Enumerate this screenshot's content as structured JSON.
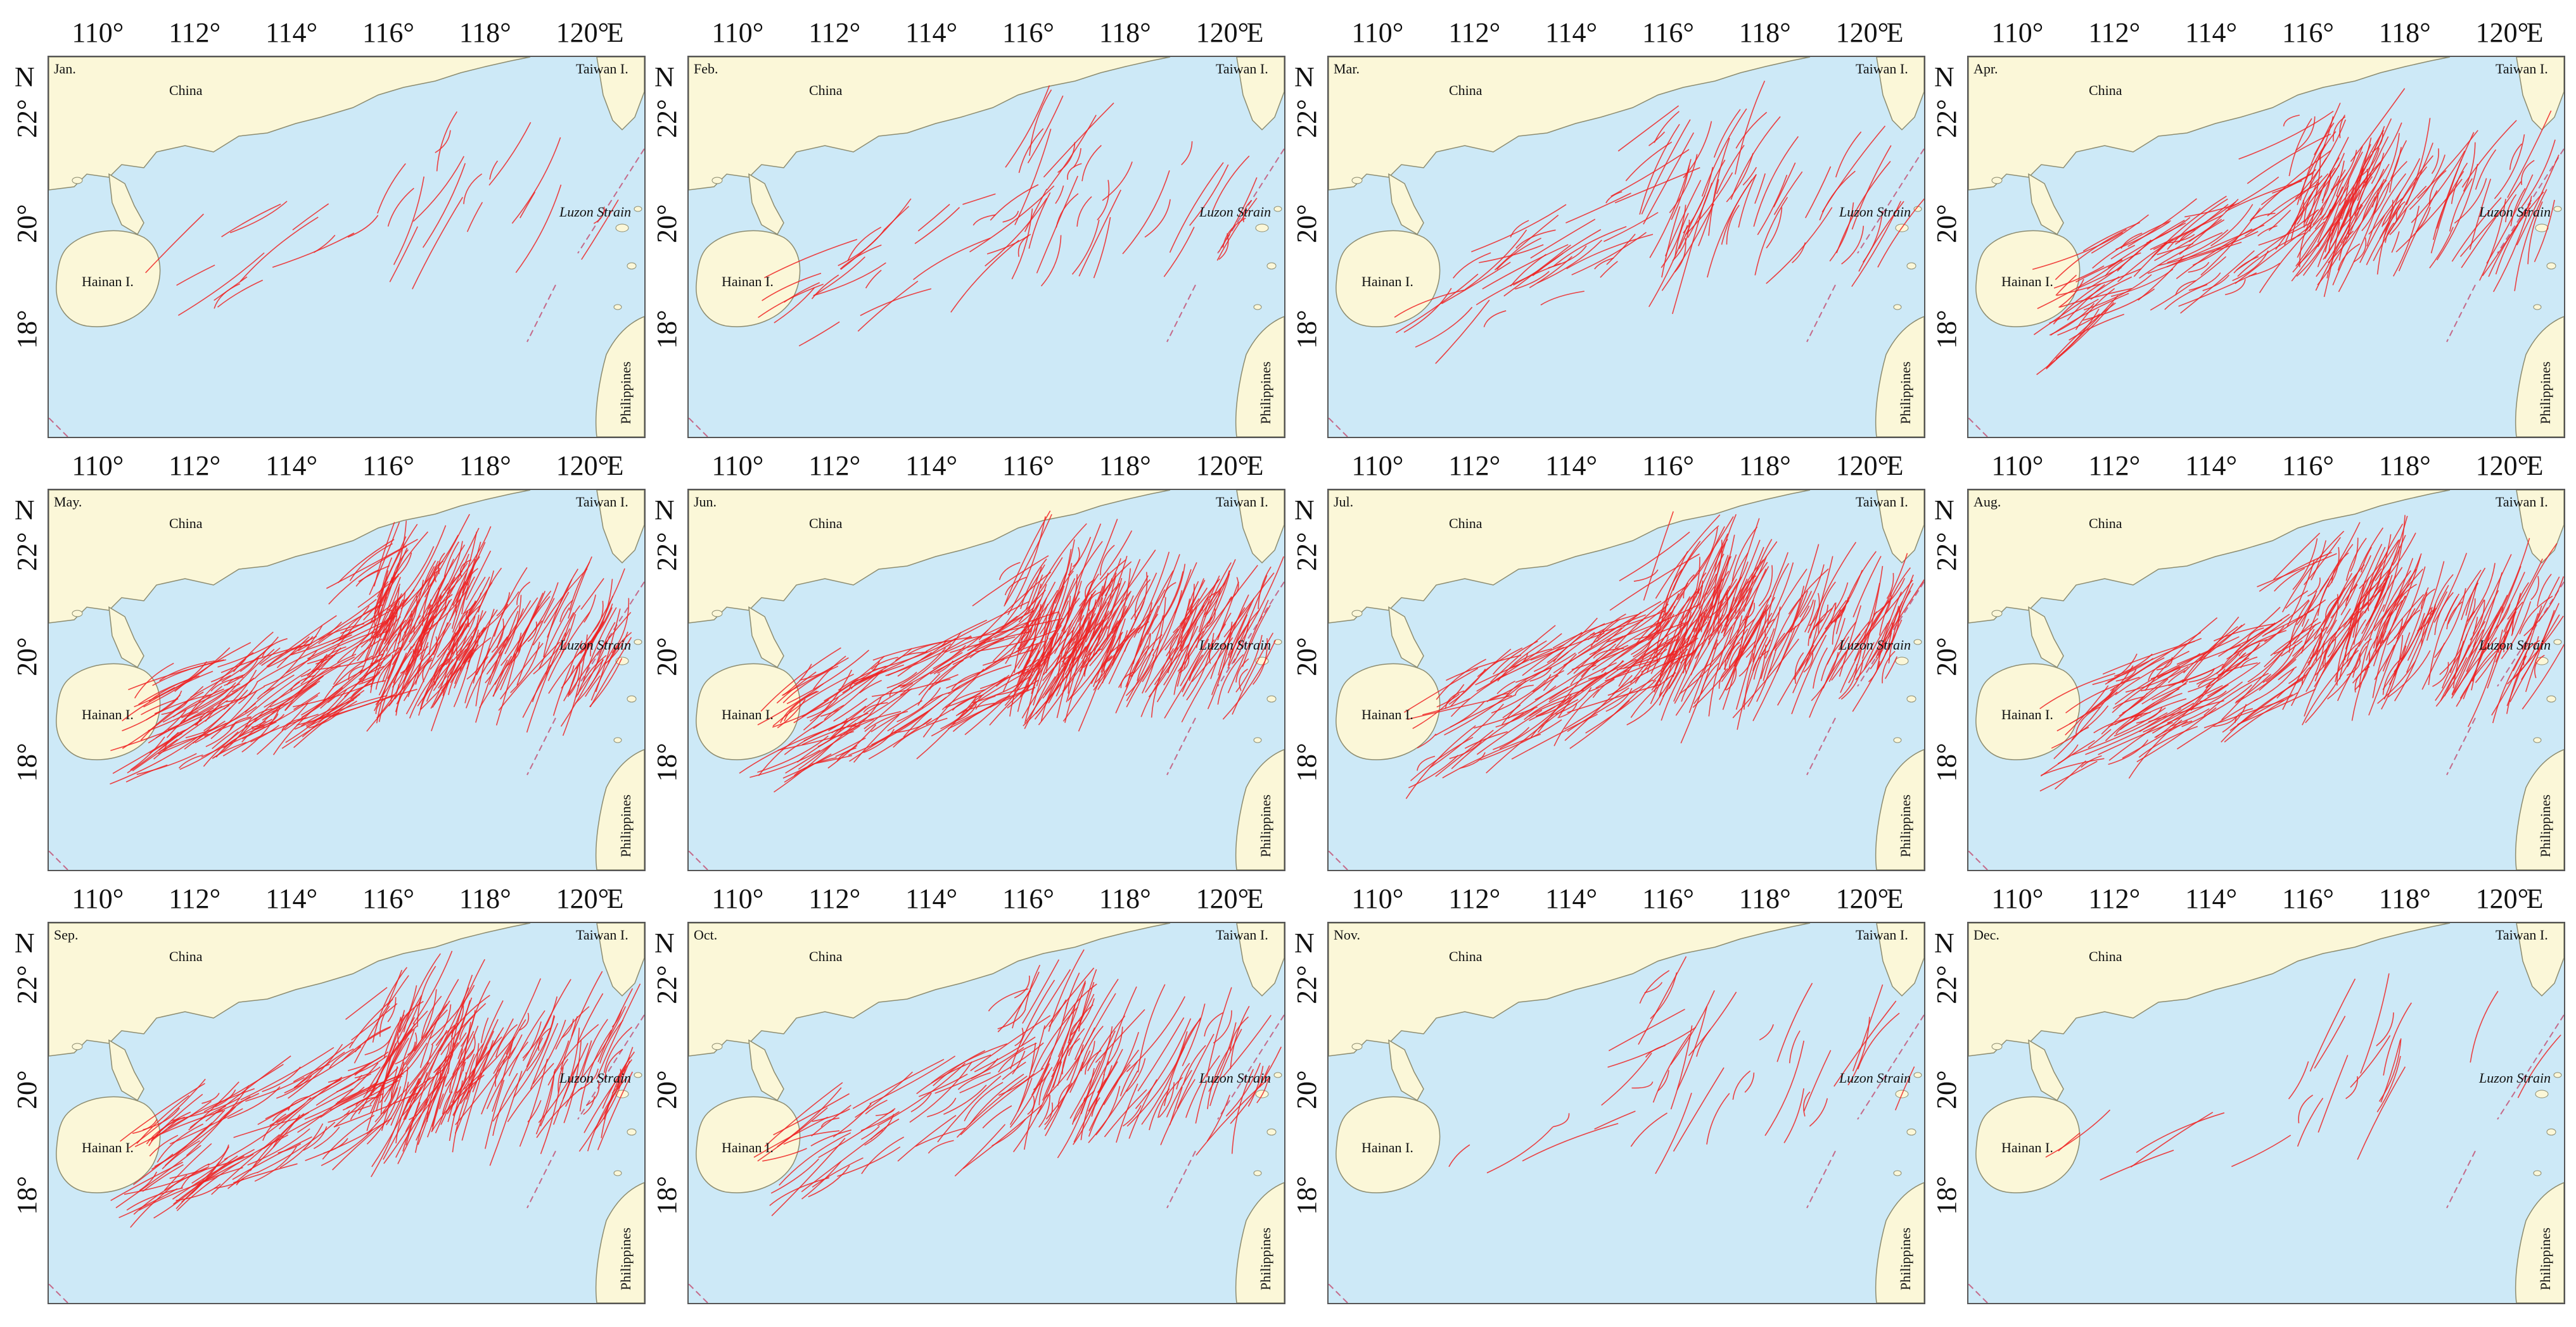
{
  "map": {
    "lon_ticks": [
      "110°",
      "112°",
      "114°",
      "116°",
      "118°",
      "120°"
    ],
    "lon_unit": "E",
    "lat_ticks": [
      "22°",
      "20°",
      "18°"
    ],
    "lat_unit": "N",
    "place_labels": {
      "china": "China",
      "taiwan": "Taiwan I.",
      "hainan": "Hainan I.",
      "luzon": "Luzon Strain",
      "philippines": "Philippines"
    },
    "colors": {
      "sea": "#cde9f7",
      "land": "#fbf7d8",
      "tracks": "#ee2222"
    }
  },
  "panels": [
    {
      "month": "Jan.",
      "density": 0.06
    },
    {
      "month": "Feb.",
      "density": 0.14
    },
    {
      "month": "Mar.",
      "density": 0.22
    },
    {
      "month": "Apr.",
      "density": 0.55
    },
    {
      "month": "May.",
      "density": 1.0
    },
    {
      "month": "Jun.",
      "density": 0.92
    },
    {
      "month": "Jul.",
      "density": 0.82
    },
    {
      "month": "Aug.",
      "density": 0.78
    },
    {
      "month": "Sep.",
      "density": 0.72
    },
    {
      "month": "Oct.",
      "density": 0.42
    },
    {
      "month": "Nov.",
      "density": 0.08
    },
    {
      "month": "Dec.",
      "density": 0.04
    }
  ]
}
